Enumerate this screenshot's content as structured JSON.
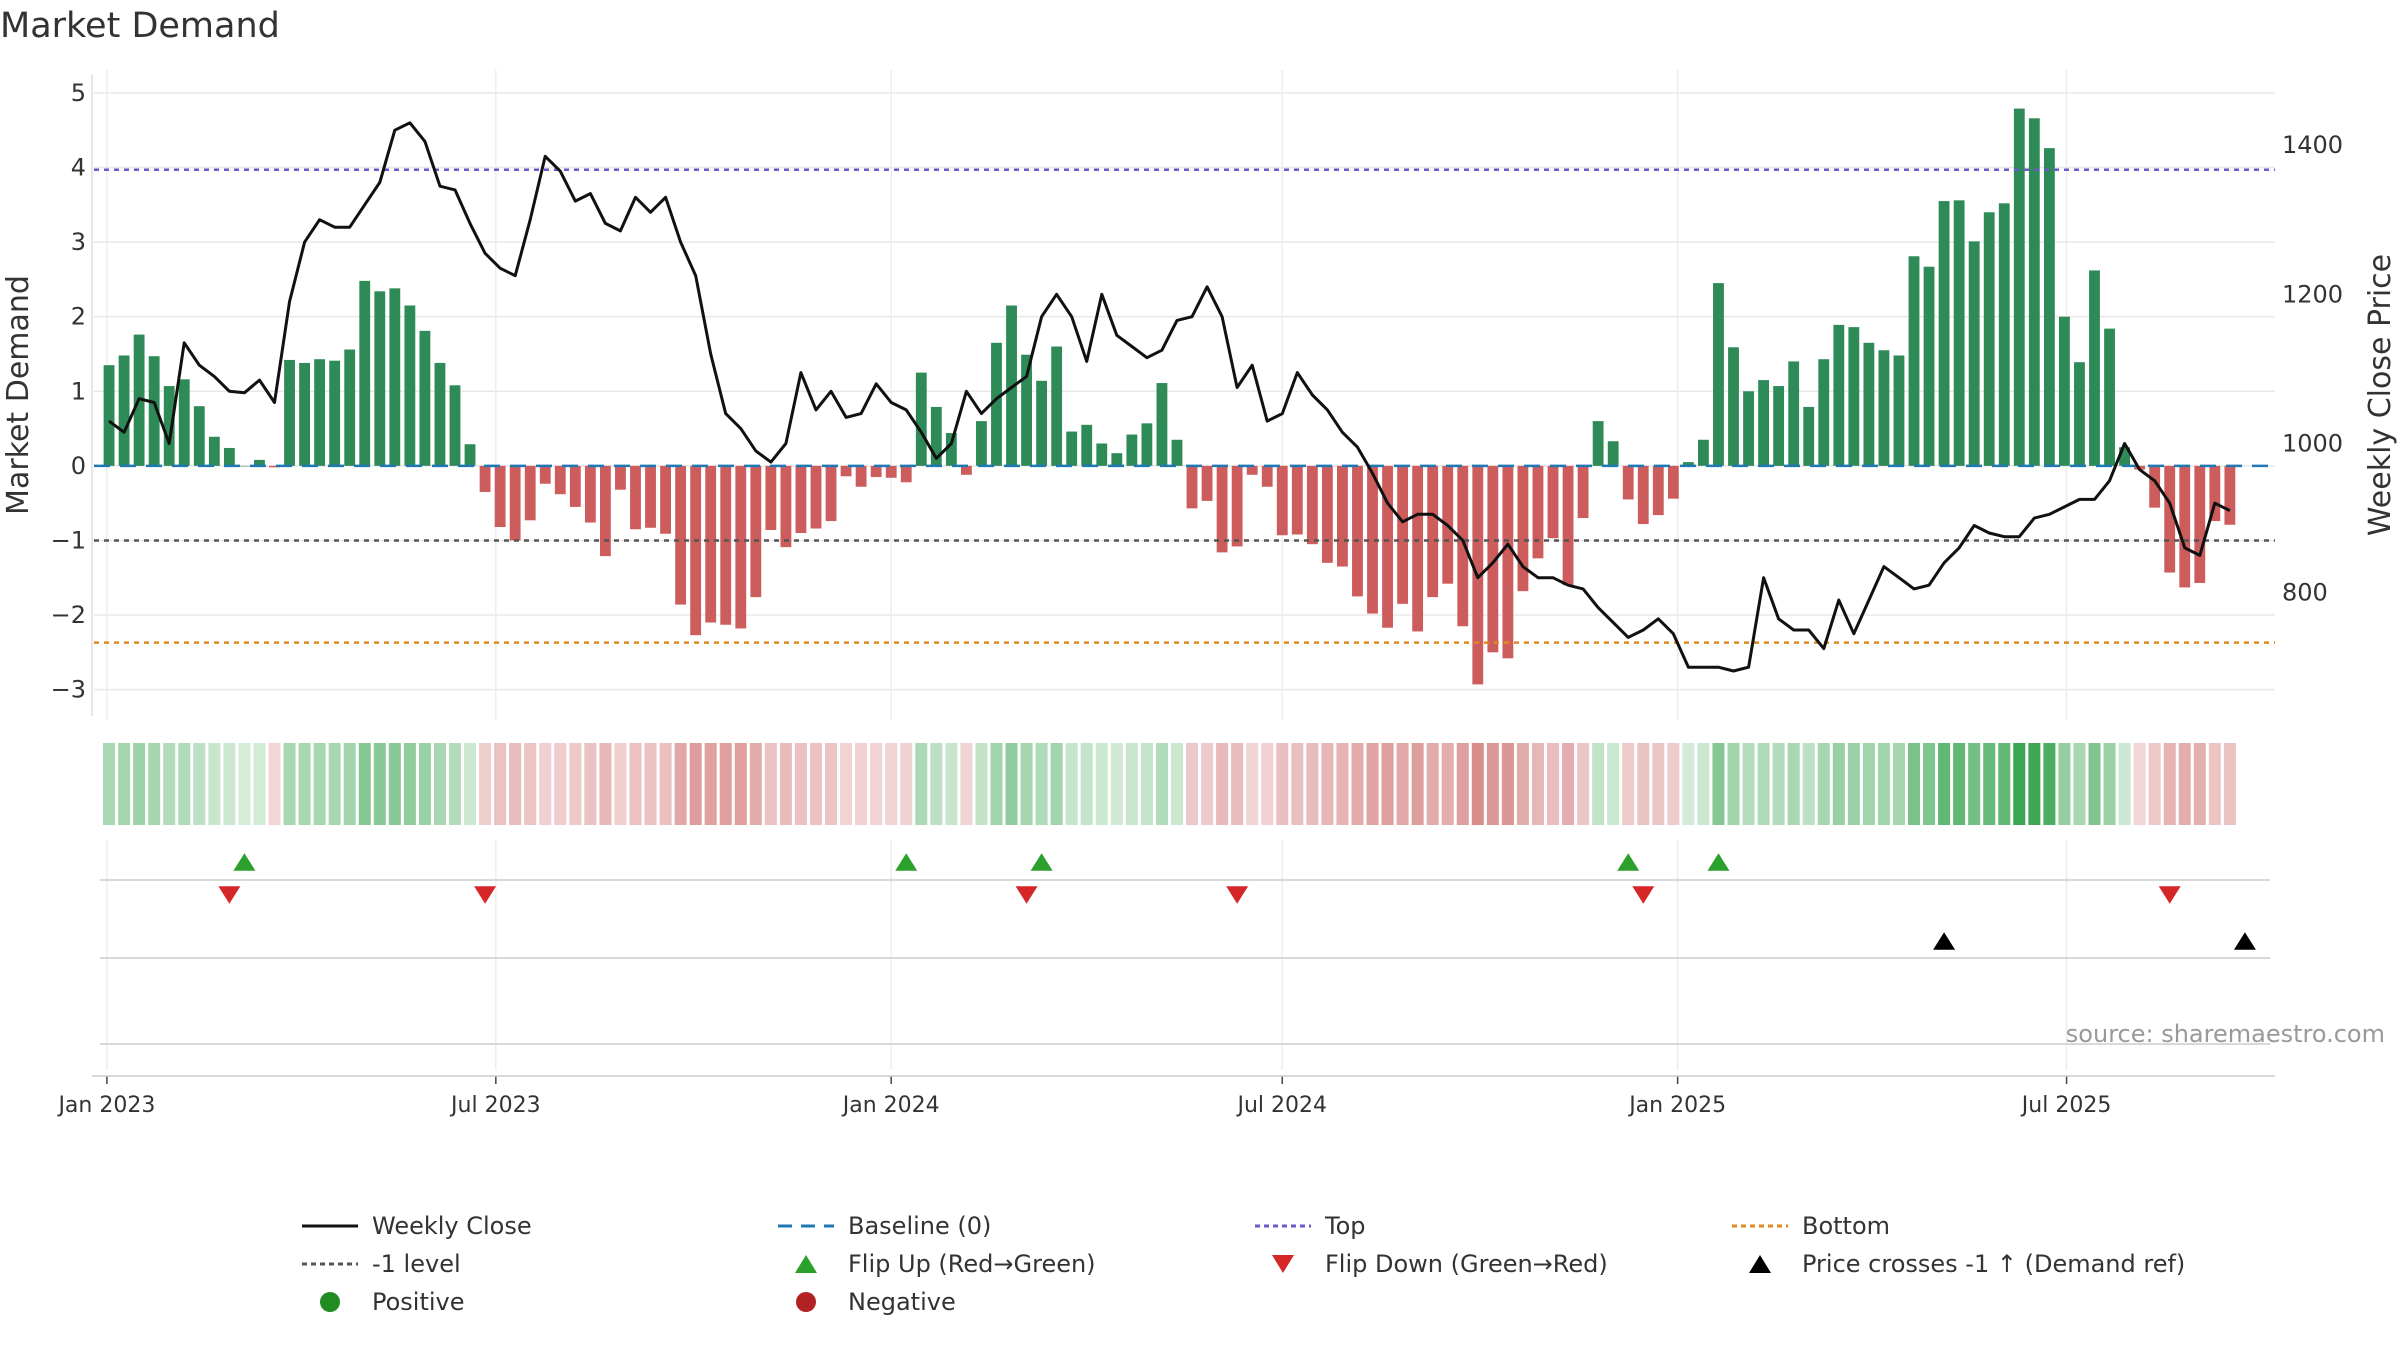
{
  "title": "Market Demand",
  "source": "source: sharemaestro.com",
  "colors": {
    "positive_bar": "#2e8b57",
    "negative_bar": "#cd5c5c",
    "weekly_close": "#111111",
    "baseline": "#1f77b4",
    "top": "#6a5acd",
    "bottom": "#e08a1e",
    "minus_one": "#555555",
    "flip_up": "#2ca02c",
    "flip_down": "#d62728",
    "cross": "#000000",
    "positive_dot": "#228b22",
    "negative_dot": "#b22222"
  },
  "chart_data": {
    "type": "bar",
    "title": "Market Demand",
    "ylabel": "Market Demand",
    "ylabel_right": "Weekly Close Price",
    "ylim": [
      -3.3,
      5.2
    ],
    "ylim_right": [
      640,
      1490
    ],
    "yticks": [
      -3,
      -2,
      -1,
      0,
      1,
      2,
      3,
      4,
      5
    ],
    "yticks_right": [
      800,
      1000,
      1200,
      1400
    ],
    "x_start": "2022-12-26",
    "x_end": "2025-10-06",
    "xticks": [
      {
        "label": "Jan 2023",
        "date": "2023-01-01"
      },
      {
        "label": "Jul 2023",
        "date": "2023-07-01"
      },
      {
        "label": "Jan 2024",
        "date": "2024-01-01"
      },
      {
        "label": "Jul 2024",
        "date": "2024-07-01"
      },
      {
        "label": "Jan 2025",
        "date": "2025-01-01"
      },
      {
        "label": "Jul 2025",
        "date": "2025-07-01"
      }
    ],
    "top_level": 3.97,
    "bottom_level": -2.37,
    "minus_one_level": -1,
    "demand": [
      1.35,
      1.48,
      1.76,
      1.47,
      1.07,
      1.16,
      0.8,
      0.39,
      0.24,
      0,
      0.08,
      -0.02,
      1.42,
      1.38,
      1.43,
      1.41,
      1.56,
      2.48,
      2.34,
      2.38,
      2.15,
      1.81,
      1.38,
      1.08,
      0.29,
      -0.35,
      -0.82,
      -1.0,
      -0.73,
      -0.24,
      -0.38,
      -0.55,
      -0.76,
      -1.21,
      -0.32,
      -0.85,
      -0.83,
      -0.91,
      -1.86,
      -2.27,
      -2.1,
      -2.13,
      -2.18,
      -1.76,
      -0.86,
      -1.09,
      -0.9,
      -0.84,
      -0.74,
      -0.14,
      -0.28,
      -0.15,
      -0.16,
      -0.22,
      1.25,
      0.79,
      0.44,
      -0.12,
      0.6,
      1.65,
      2.15,
      1.49,
      1.14,
      1.6,
      0.46,
      0.55,
      0.3,
      0.17,
      0.42,
      0.57,
      1.11,
      0.35,
      -0.57,
      -0.47,
      -1.16,
      -1.08,
      -0.12,
      -0.28,
      -0.93,
      -0.92,
      -1.05,
      -1.3,
      -1.35,
      -1.75,
      -1.98,
      -2.17,
      -1.85,
      -2.22,
      -1.76,
      -1.58,
      -2.15,
      -2.93,
      -2.5,
      -2.58,
      -1.68,
      -1.24,
      -0.97,
      -1.6,
      -0.7,
      0.6,
      0.33,
      -0.45,
      -0.78,
      -0.66,
      -0.44,
      0.05,
      0.35,
      2.45,
      1.59,
      1.0,
      1.15,
      1.07,
      1.4,
      0.79,
      1.43,
      1.89,
      1.86,
      1.65,
      1.55,
      1.48,
      2.81,
      2.67,
      3.55,
      3.56,
      3.01,
      3.4,
      3.52,
      4.79,
      4.66,
      4.26,
      2.0,
      1.39,
      2.62,
      1.84,
      0.25,
      -0.05,
      -0.56,
      -1.43,
      -1.63,
      -1.57,
      -0.74,
      -0.79
    ],
    "weekly_close": [
      1030,
      1015,
      1060,
      1055,
      1000,
      1135,
      1105,
      1090,
      1070,
      1068,
      1085,
      1055,
      1190,
      1270,
      1300,
      1290,
      1290,
      1320,
      1350,
      1420,
      1430,
      1405,
      1345,
      1340,
      1295,
      1255,
      1235,
      1225,
      1300,
      1385,
      1365,
      1325,
      1335,
      1295,
      1285,
      1330,
      1310,
      1330,
      1270,
      1225,
      1120,
      1040,
      1020,
      990,
      975,
      1000,
      1095,
      1045,
      1070,
      1035,
      1040,
      1080,
      1055,
      1045,
      1015,
      980,
      1000,
      1070,
      1040,
      1060,
      1075,
      1090,
      1170,
      1200,
      1170,
      1110,
      1200,
      1145,
      1130,
      1115,
      1125,
      1165,
      1170,
      1210,
      1170,
      1075,
      1105,
      1030,
      1040,
      1095,
      1065,
      1045,
      1015,
      995,
      960,
      920,
      895,
      905,
      905,
      890,
      870,
      820,
      840,
      865,
      835,
      820,
      820,
      810,
      805,
      780,
      760,
      740,
      750,
      765,
      745,
      700,
      700,
      700,
      695,
      700,
      820,
      765,
      750,
      750,
      725,
      790,
      745,
      790,
      835,
      820,
      805,
      810,
      840,
      860,
      890,
      880,
      875,
      875,
      900,
      905,
      915,
      925,
      925,
      950,
      1000,
      965,
      950,
      920,
      860,
      850,
      920,
      910
    ],
    "flip_up": [
      "2023-03-06",
      "2024-01-08",
      "2024-03-11",
      "2024-12-09",
      "2025-01-20"
    ],
    "flip_down": [
      "2023-02-27",
      "2023-06-26",
      "2024-03-04",
      "2024-06-10",
      "2024-12-16",
      "2025-08-18"
    ],
    "price_cross_up": [
      "2025-05-05",
      "2025-09-22"
    ],
    "legend": [
      {
        "kind": "line",
        "label": "Weekly Close"
      },
      {
        "kind": "dashed",
        "label": "Baseline (0)"
      },
      {
        "kind": "dotted_top",
        "label": "Top"
      },
      {
        "kind": "dotted_bottom",
        "label": "Bottom"
      },
      {
        "kind": "dotted_minus",
        "label": "-1 level"
      },
      {
        "kind": "tri_up_green",
        "label": "Flip Up (Red→Green)"
      },
      {
        "kind": "tri_down_red",
        "label": "Flip Down (Green→Red)"
      },
      {
        "kind": "tri_up_black",
        "label": "Price crosses -1 ↑ (Demand ref)"
      },
      {
        "kind": "dot_green",
        "label": "Positive"
      },
      {
        "kind": "dot_red",
        "label": "Negative"
      }
    ]
  }
}
